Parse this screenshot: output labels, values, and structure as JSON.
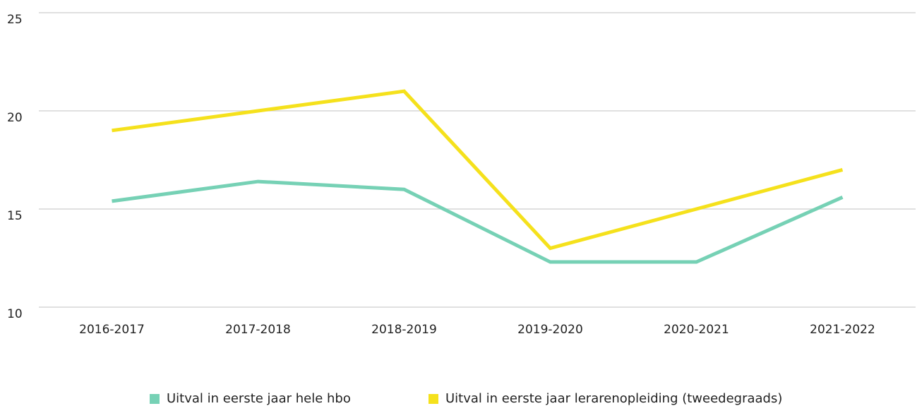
{
  "chart_data": {
    "type": "line",
    "categories": [
      "2016-2017",
      "2017-2018",
      "2018-2019",
      "2019-2020",
      "2020-2021",
      "2021-2022"
    ],
    "series": [
      {
        "name": "Uitval in eerste jaar hele hbo",
        "color": "#76d1b5",
        "values": [
          15.4,
          16.4,
          16.0,
          12.3,
          12.3,
          15.6
        ]
      },
      {
        "name": "Uitval in eerste jaar lerarenopleiding (tweedegraads)",
        "color": "#f5e11c",
        "values": [
          19.0,
          20.0,
          21.0,
          13.0,
          15.0,
          17.0
        ]
      }
    ],
    "ylim": [
      10,
      25
    ],
    "yticks": [
      10,
      15,
      20,
      25
    ],
    "grid": true,
    "legend": "bottom"
  }
}
